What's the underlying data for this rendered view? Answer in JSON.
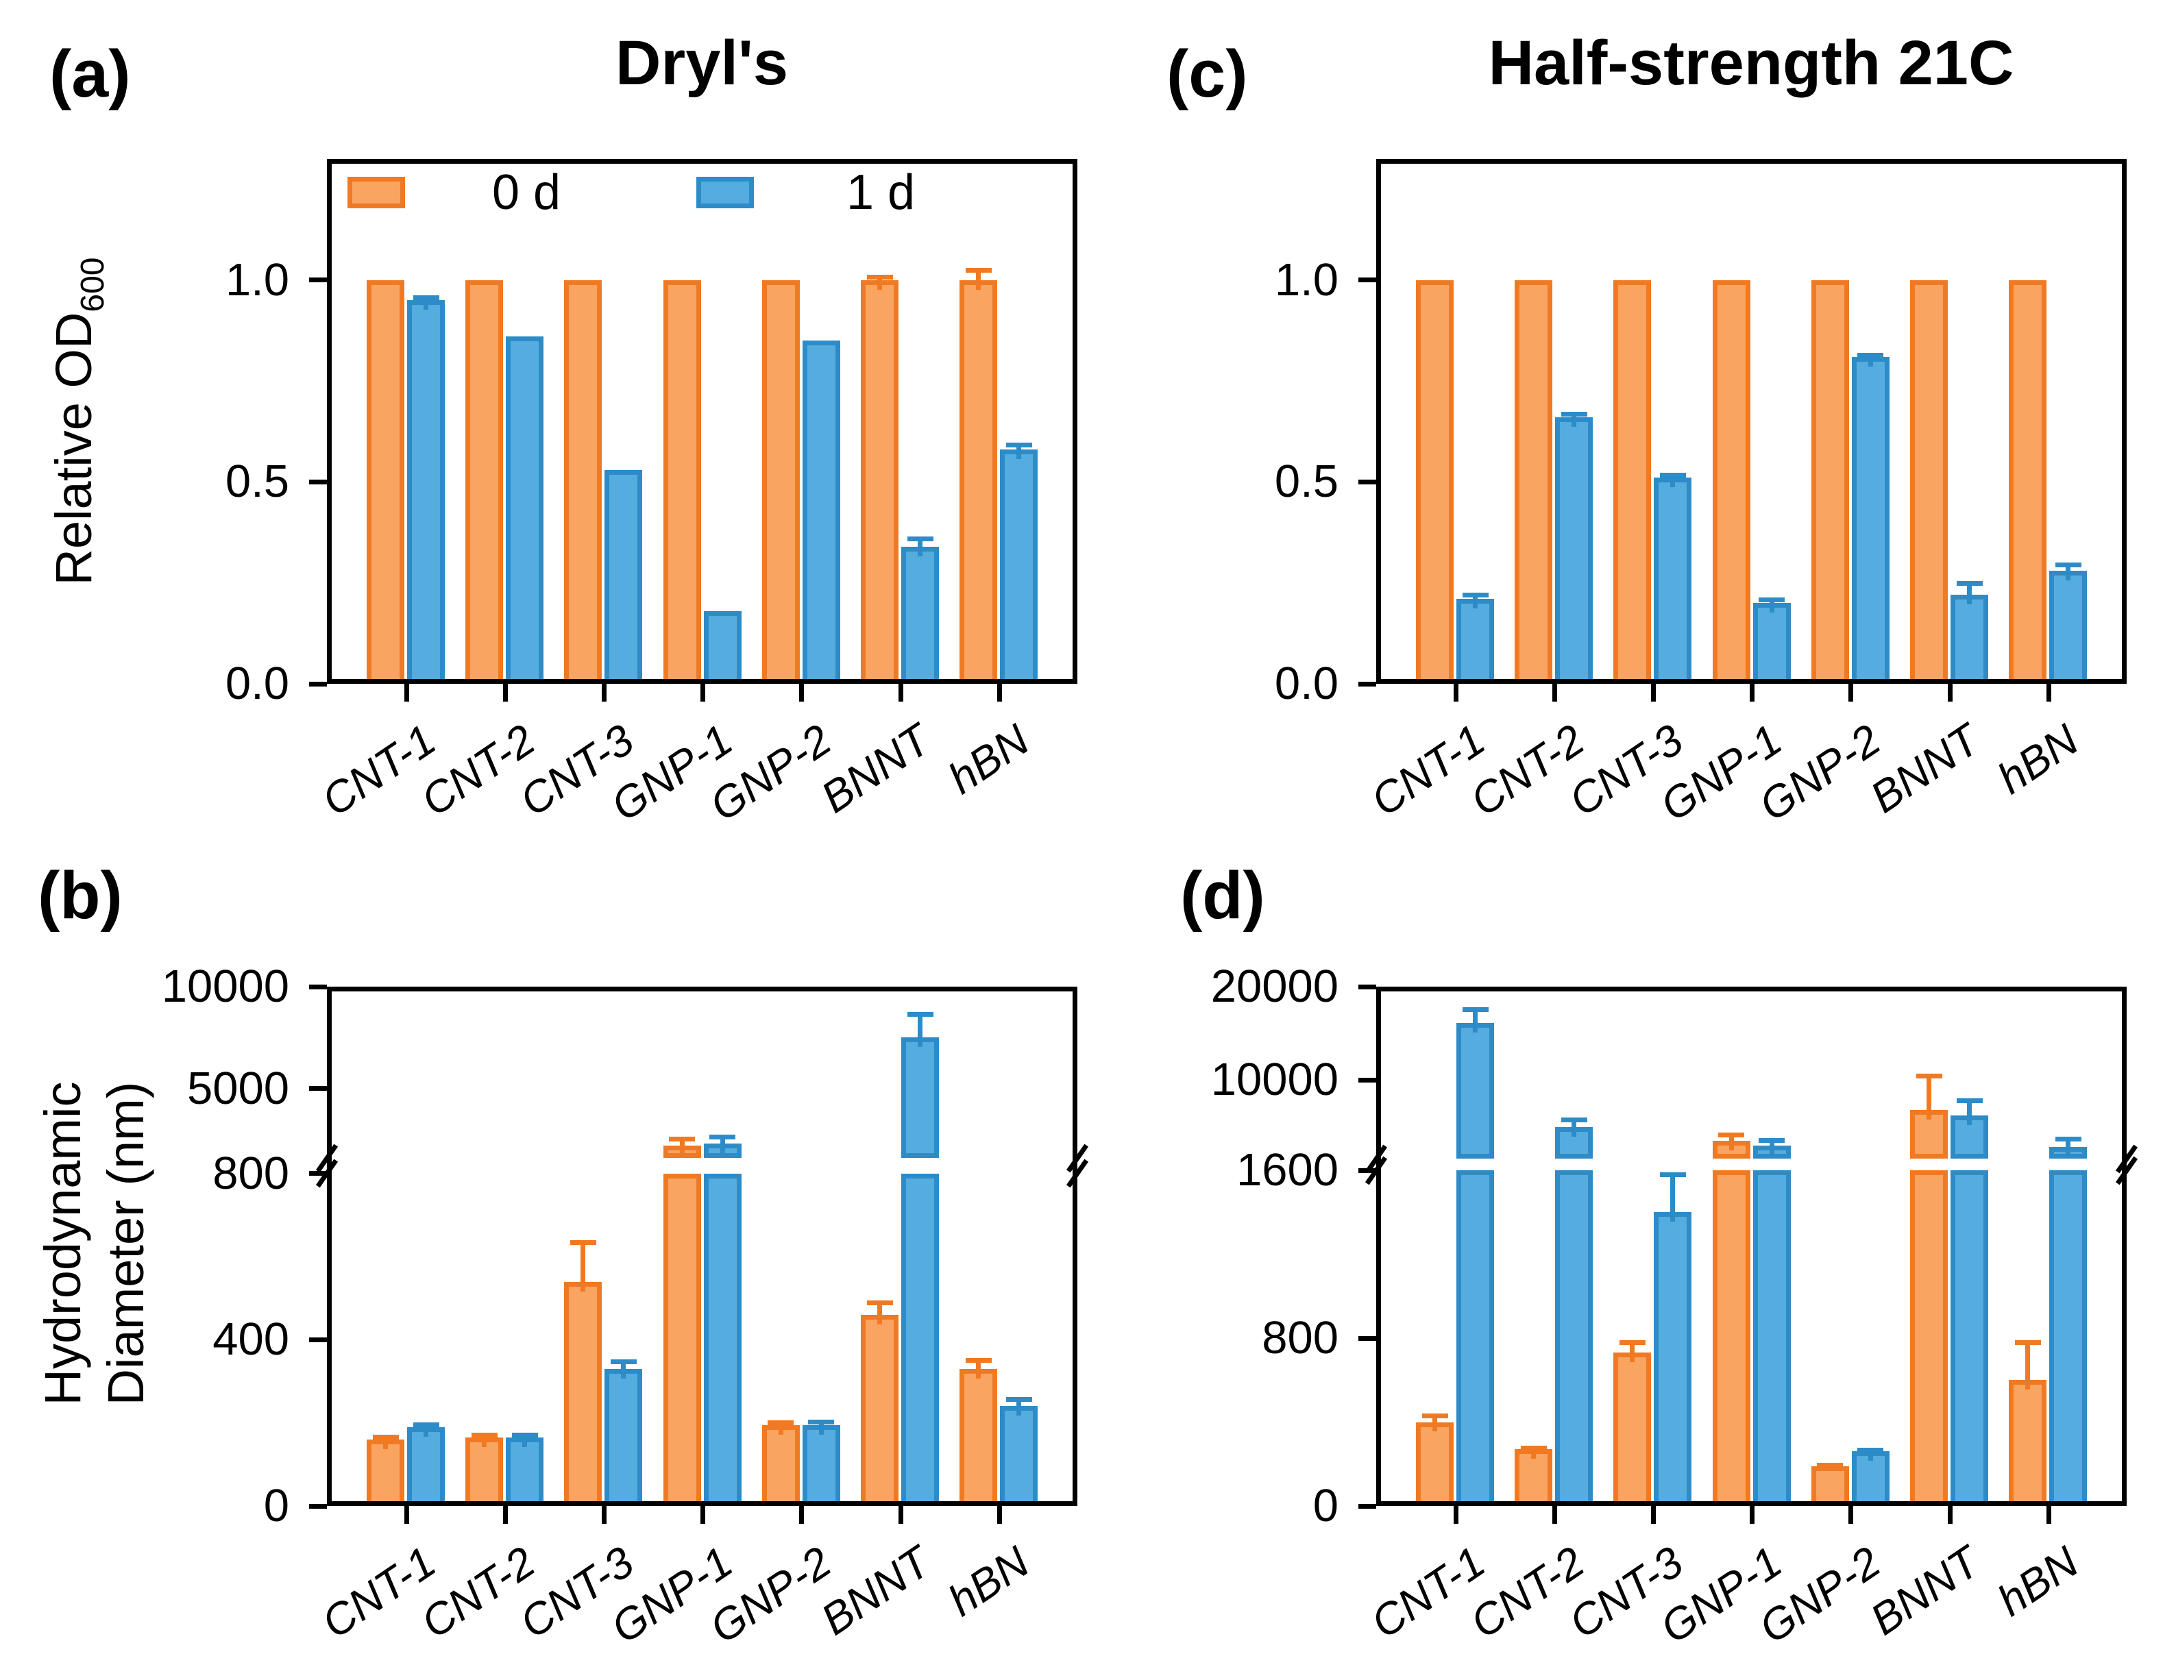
{
  "figure": {
    "background": "#ffffff",
    "text_color": "#000000",
    "colors": {
      "series0_fill": "#FAA462",
      "series0_edge": "#F07A23",
      "series1_fill": "#55ACDE",
      "series1_edge": "#2D8CC8",
      "axis": "#000000"
    },
    "legend": {
      "location": "inside-top-of-panel-a",
      "items": [
        {
          "label": "0 d",
          "series": "day0"
        },
        {
          "label": "1 d",
          "series": "day1"
        }
      ]
    },
    "axis_labels": {
      "od_main": "Relative OD",
      "od_sub": "600",
      "hd_line1": "Hydrodynamic",
      "hd_line2": "Diameter (nm)"
    },
    "panels": [
      {
        "id": "a",
        "letter": "(a)",
        "title": "Dryl's"
      },
      {
        "id": "b",
        "letter": "(b)"
      },
      {
        "id": "c",
        "letter": "(c)",
        "title": "Half-strength 21C"
      },
      {
        "id": "d",
        "letter": "(d)"
      }
    ]
  },
  "chart_data": [
    {
      "id": "a",
      "panel": "a",
      "type": "bar",
      "title": "Dryl's",
      "ylabel": "Relative OD600",
      "categories": [
        "CNT-1",
        "CNT-2",
        "CNT-3",
        "GNP-1",
        "GNP-2",
        "BNNT",
        "hBN"
      ],
      "series": [
        {
          "name": "0 d",
          "values": [
            1.0,
            1.0,
            1.0,
            1.0,
            1.0,
            1.0,
            1.0
          ],
          "errors": [
            0,
            0,
            0,
            0,
            0,
            0.008,
            0.025
          ]
        },
        {
          "name": "1 d",
          "values": [
            0.95,
            0.86,
            0.53,
            0.18,
            0.85,
            0.34,
            0.58
          ],
          "errors": [
            0.008,
            0,
            0,
            0,
            0,
            0.02,
            0.012
          ]
        }
      ],
      "yaxis": {
        "type": "linear",
        "min": 0,
        "max": 1.3
      },
      "yticks": [
        {
          "value": 0,
          "label": "0.0"
        },
        {
          "value": 0.5,
          "label": "0.5"
        },
        {
          "value": 1.0,
          "label": "1.0"
        }
      ],
      "grid": false,
      "legend": true
    },
    {
      "id": "b",
      "panel": "b",
      "type": "bar",
      "title": "",
      "ylabel": "Hydrodynamic Diameter (nm)",
      "categories": [
        "CNT-1",
        "CNT-2",
        "CNT-3",
        "GNP-1",
        "GNP-2",
        "BNNT",
        "hBN"
      ],
      "series": [
        {
          "name": "0 d",
          "values": [
            160,
            165,
            540,
            2200,
            195,
            460,
            330
          ],
          "errors": [
            6,
            6,
            95,
            350,
            6,
            30,
            22
          ]
        },
        {
          "name": "1 d",
          "values": [
            190,
            165,
            330,
            2300,
            195,
            7500,
            240
          ],
          "errors": [
            6,
            6,
            18,
            350,
            8,
            1150,
            18
          ]
        }
      ],
      "yaxis": {
        "type": "broken",
        "lower": [
          0,
          800
        ],
        "upper": [
          1600,
          10000
        ],
        "lower_frac": 0.64,
        "gap_frac": 0.03
      },
      "yticks": [
        {
          "value": 0,
          "label": "0"
        },
        {
          "value": 400,
          "label": "400"
        },
        {
          "value": 800,
          "label": "800"
        },
        {
          "value": 5000,
          "label": "5000"
        },
        {
          "value": 10000,
          "label": "10000"
        }
      ],
      "grid": false,
      "legend": false
    },
    {
      "id": "c",
      "panel": "c",
      "type": "bar",
      "title": "Half-strength 21C",
      "ylabel": "Relative OD600",
      "categories": [
        "CNT-1",
        "CNT-2",
        "CNT-3",
        "GNP-1",
        "GNP-2",
        "BNNT",
        "hBN"
      ],
      "series": [
        {
          "name": "0 d",
          "values": [
            1.0,
            1.0,
            1.0,
            1.0,
            1.0,
            1.0,
            1.0
          ],
          "errors": [
            0,
            0,
            0,
            0,
            0,
            0,
            0
          ]
        },
        {
          "name": "1 d",
          "values": [
            0.21,
            0.66,
            0.51,
            0.2,
            0.81,
            0.22,
            0.28
          ],
          "errors": [
            0.01,
            0.008,
            0.008,
            0.008,
            0.005,
            0.03,
            0.015
          ]
        }
      ],
      "yaxis": {
        "type": "linear",
        "min": 0,
        "max": 1.3
      },
      "yticks": [
        {
          "value": 0,
          "label": "0.0"
        },
        {
          "value": 0.5,
          "label": "0.5"
        },
        {
          "value": 1.0,
          "label": "1.0"
        }
      ],
      "grid": false,
      "legend": false
    },
    {
      "id": "d",
      "panel": "d",
      "type": "bar",
      "title": "",
      "ylabel": "Hydrodynamic Diameter (nm)",
      "categories": [
        "CNT-1",
        "CNT-2",
        "CNT-3",
        "GNP-1",
        "GNP-2",
        "BNNT",
        "hBN"
      ],
      "series": [
        {
          "name": "0 d",
          "values": [
            400,
            270,
            730,
            3500,
            190,
            6800,
            600
          ],
          "errors": [
            30,
            8,
            50,
            700,
            6,
            3700,
            180
          ]
        },
        {
          "name": "1 d",
          "values": [
            16100,
            5000,
            1400,
            3000,
            260,
            6200,
            2850
          ],
          "errors": [
            1500,
            800,
            180,
            600,
            8,
            1600,
            900
          ]
        }
      ],
      "yaxis": {
        "type": "broken",
        "lower": [
          0,
          1600
        ],
        "upper": [
          1600,
          20000
        ],
        "lower_frac": 0.6464,
        "gap_frac": 0.0224
      },
      "yticks": [
        {
          "value": 0,
          "label": "0"
        },
        {
          "value": 800,
          "label": "800"
        },
        {
          "value": 1600,
          "label": "1600"
        },
        {
          "value": 10000,
          "label": "10000"
        },
        {
          "value": 20000,
          "label": "20000"
        }
      ],
      "grid": false,
      "legend": false
    }
  ]
}
